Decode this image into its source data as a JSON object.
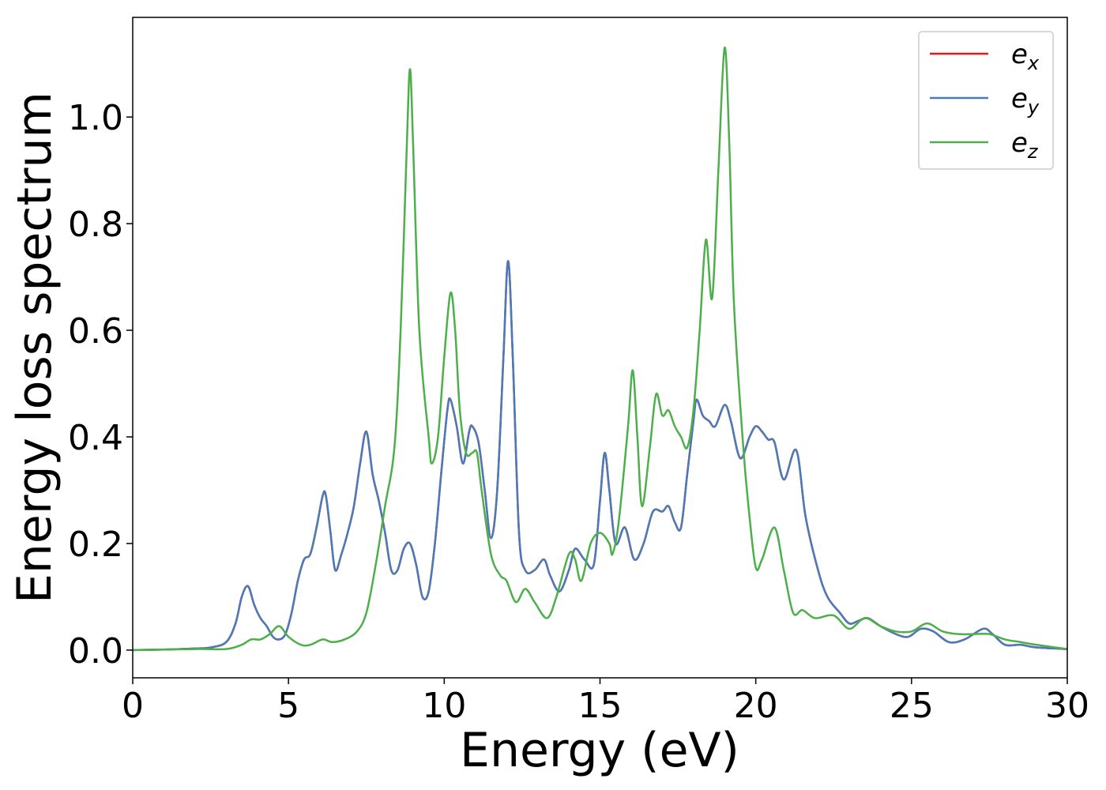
{
  "chart_data": {
    "type": "line",
    "xlabel": "Energy (eV)",
    "ylabel": "Energy loss spectrum",
    "xlim": [
      0,
      30
    ],
    "ylim": [
      -0.052,
      1.187
    ],
    "xticks": [
      0,
      5,
      10,
      15,
      20,
      25,
      30
    ],
    "yticks": [
      {
        "value": 0,
        "label": "0.0"
      },
      0.2,
      0.4,
      0.6,
      0.8,
      {
        "value": 1,
        "label": "1.0"
      }
    ],
    "legend": "upper right",
    "series": [
      {
        "name": "e",
        "subscript": "x",
        "color": "#e41a1c",
        "x": [
          0,
          1,
          2,
          2.5,
          3,
          3.3,
          3.5,
          3.7,
          3.9,
          4.1,
          4.3,
          4.5,
          4.7,
          4.9,
          5.1,
          5.3,
          5.5,
          5.7,
          5.9,
          6.1,
          6.2,
          6.35,
          6.5,
          6.7,
          6.9,
          7.1,
          7.3,
          7.5,
          7.7,
          7.9,
          8.1,
          8.3,
          8.5,
          8.7,
          8.9,
          9.1,
          9.3,
          9.5,
          9.7,
          9.9,
          10.1,
          10.2,
          10.4,
          10.6,
          10.8,
          10.9,
          11.1,
          11.3,
          11.5,
          11.7,
          11.9,
          12.05,
          12.2,
          12.4,
          12.6,
          12.9,
          13.2,
          13.4,
          13.7,
          14.0,
          14.2,
          14.5,
          14.8,
          15.0,
          15.15,
          15.3,
          15.5,
          15.8,
          16.1,
          16.4,
          16.7,
          17.0,
          17.2,
          17.4,
          17.6,
          17.8,
          18.0,
          18.1,
          18.3,
          18.5,
          18.7,
          19.0,
          19.2,
          19.5,
          19.8,
          20.0,
          20.2,
          20.4,
          20.6,
          20.9,
          21.3,
          21.6,
          22.0,
          22.3,
          22.7,
          23.0,
          23.3,
          23.6,
          24.0,
          24.5,
          24.9,
          25.3,
          25.7,
          26.2,
          26.7,
          27.3,
          27.6,
          28.0,
          28.5,
          29.0,
          30
        ],
        "values": [
          0,
          0.001,
          0.003,
          0.005,
          0.015,
          0.05,
          0.1,
          0.12,
          0.085,
          0.06,
          0.045,
          0.025,
          0.02,
          0.03,
          0.07,
          0.13,
          0.17,
          0.18,
          0.23,
          0.29,
          0.29,
          0.22,
          0.15,
          0.18,
          0.22,
          0.27,
          0.35,
          0.41,
          0.33,
          0.28,
          0.22,
          0.15,
          0.15,
          0.19,
          0.2,
          0.16,
          0.1,
          0.11,
          0.2,
          0.33,
          0.45,
          0.47,
          0.42,
          0.35,
          0.41,
          0.42,
          0.39,
          0.3,
          0.21,
          0.3,
          0.55,
          0.73,
          0.55,
          0.22,
          0.15,
          0.15,
          0.17,
          0.14,
          0.11,
          0.15,
          0.19,
          0.17,
          0.16,
          0.28,
          0.37,
          0.3,
          0.2,
          0.23,
          0.17,
          0.2,
          0.26,
          0.26,
          0.27,
          0.24,
          0.23,
          0.33,
          0.43,
          0.47,
          0.44,
          0.43,
          0.42,
          0.46,
          0.43,
          0.36,
          0.4,
          0.42,
          0.41,
          0.395,
          0.39,
          0.32,
          0.375,
          0.25,
          0.15,
          0.1,
          0.07,
          0.05,
          0.055,
          0.06,
          0.045,
          0.03,
          0.025,
          0.04,
          0.035,
          0.015,
          0.02,
          0.04,
          0.03,
          0.01,
          0.01,
          0.005,
          0.002
        ]
      },
      {
        "name": "e",
        "subscript": "y",
        "color": "#4a7bb8",
        "x": [
          0,
          1,
          2,
          2.5,
          3,
          3.3,
          3.5,
          3.7,
          3.9,
          4.1,
          4.3,
          4.5,
          4.7,
          4.9,
          5.1,
          5.3,
          5.5,
          5.7,
          5.9,
          6.1,
          6.2,
          6.35,
          6.5,
          6.7,
          6.9,
          7.1,
          7.3,
          7.5,
          7.7,
          7.9,
          8.1,
          8.3,
          8.5,
          8.7,
          8.9,
          9.1,
          9.3,
          9.5,
          9.7,
          9.9,
          10.1,
          10.2,
          10.4,
          10.6,
          10.8,
          10.9,
          11.1,
          11.3,
          11.5,
          11.7,
          11.9,
          12.05,
          12.2,
          12.4,
          12.6,
          12.9,
          13.2,
          13.4,
          13.7,
          14.0,
          14.2,
          14.5,
          14.8,
          15.0,
          15.15,
          15.3,
          15.5,
          15.8,
          16.1,
          16.4,
          16.7,
          17.0,
          17.2,
          17.4,
          17.6,
          17.8,
          18.0,
          18.1,
          18.3,
          18.5,
          18.7,
          19.0,
          19.2,
          19.5,
          19.8,
          20.0,
          20.2,
          20.4,
          20.6,
          20.9,
          21.3,
          21.6,
          22.0,
          22.3,
          22.7,
          23.0,
          23.3,
          23.6,
          24.0,
          24.5,
          24.9,
          25.3,
          25.7,
          26.2,
          26.7,
          27.3,
          27.6,
          28.0,
          28.5,
          29.0,
          30
        ],
        "values": [
          0,
          0.001,
          0.003,
          0.005,
          0.015,
          0.05,
          0.1,
          0.12,
          0.085,
          0.06,
          0.045,
          0.025,
          0.02,
          0.03,
          0.07,
          0.13,
          0.17,
          0.18,
          0.23,
          0.29,
          0.29,
          0.22,
          0.15,
          0.18,
          0.22,
          0.27,
          0.35,
          0.41,
          0.33,
          0.28,
          0.22,
          0.15,
          0.15,
          0.19,
          0.2,
          0.16,
          0.1,
          0.11,
          0.2,
          0.33,
          0.45,
          0.47,
          0.42,
          0.35,
          0.41,
          0.42,
          0.39,
          0.3,
          0.21,
          0.3,
          0.55,
          0.73,
          0.55,
          0.22,
          0.15,
          0.15,
          0.17,
          0.14,
          0.11,
          0.15,
          0.19,
          0.17,
          0.16,
          0.28,
          0.37,
          0.3,
          0.2,
          0.23,
          0.17,
          0.2,
          0.26,
          0.26,
          0.27,
          0.24,
          0.23,
          0.33,
          0.43,
          0.47,
          0.44,
          0.43,
          0.42,
          0.46,
          0.43,
          0.36,
          0.4,
          0.42,
          0.41,
          0.395,
          0.39,
          0.32,
          0.375,
          0.25,
          0.15,
          0.1,
          0.07,
          0.05,
          0.055,
          0.06,
          0.045,
          0.03,
          0.025,
          0.04,
          0.035,
          0.015,
          0.02,
          0.04,
          0.03,
          0.01,
          0.01,
          0.005,
          0.002
        ]
      },
      {
        "name": "e",
        "subscript": "z",
        "color": "#4daf4a",
        "x": [
          0,
          2,
          3,
          3.5,
          3.8,
          4.1,
          4.4,
          4.7,
          5.0,
          5.4,
          5.7,
          6.1,
          6.4,
          6.8,
          7.2,
          7.5,
          7.8,
          8.1,
          8.4,
          8.6,
          8.8,
          8.9,
          9.0,
          9.2,
          9.5,
          9.6,
          9.8,
          10.0,
          10.2,
          10.35,
          10.5,
          10.7,
          10.9,
          11.05,
          11.2,
          11.5,
          11.8,
          12.0,
          12.3,
          12.6,
          12.9,
          13.3,
          13.6,
          14.0,
          14.2,
          14.4,
          14.7,
          15.0,
          15.3,
          15.4,
          15.6,
          15.9,
          16.05,
          16.2,
          16.35,
          16.6,
          16.8,
          17.0,
          17.2,
          17.4,
          17.6,
          17.8,
          18.0,
          18.2,
          18.4,
          18.6,
          18.8,
          19.0,
          19.15,
          19.3,
          19.6,
          19.8,
          20.0,
          20.2,
          20.6,
          20.9,
          21.2,
          21.5,
          21.9,
          22.5,
          23.0,
          23.5,
          24.0,
          24.5,
          25.0,
          25.5,
          26.0,
          26.5,
          27.0,
          27.5,
          28.0,
          28.5,
          29.0,
          30
        ],
        "values": [
          0,
          0.002,
          0.002,
          0.01,
          0.02,
          0.02,
          0.03,
          0.045,
          0.025,
          0.01,
          0.01,
          0.02,
          0.015,
          0.02,
          0.035,
          0.07,
          0.16,
          0.27,
          0.38,
          0.6,
          0.95,
          1.09,
          0.95,
          0.6,
          0.4,
          0.35,
          0.4,
          0.55,
          0.67,
          0.6,
          0.45,
          0.37,
          0.37,
          0.37,
          0.3,
          0.18,
          0.14,
          0.13,
          0.09,
          0.115,
          0.09,
          0.06,
          0.1,
          0.18,
          0.17,
          0.13,
          0.2,
          0.22,
          0.2,
          0.18,
          0.24,
          0.42,
          0.525,
          0.4,
          0.27,
          0.38,
          0.48,
          0.44,
          0.45,
          0.42,
          0.4,
          0.38,
          0.45,
          0.6,
          0.77,
          0.66,
          0.9,
          1.13,
          0.95,
          0.65,
          0.38,
          0.25,
          0.155,
          0.17,
          0.23,
          0.15,
          0.07,
          0.075,
          0.06,
          0.065,
          0.04,
          0.06,
          0.045,
          0.035,
          0.035,
          0.05,
          0.035,
          0.03,
          0.03,
          0.03,
          0.02,
          0.015,
          0.01,
          0.002
        ]
      }
    ]
  }
}
